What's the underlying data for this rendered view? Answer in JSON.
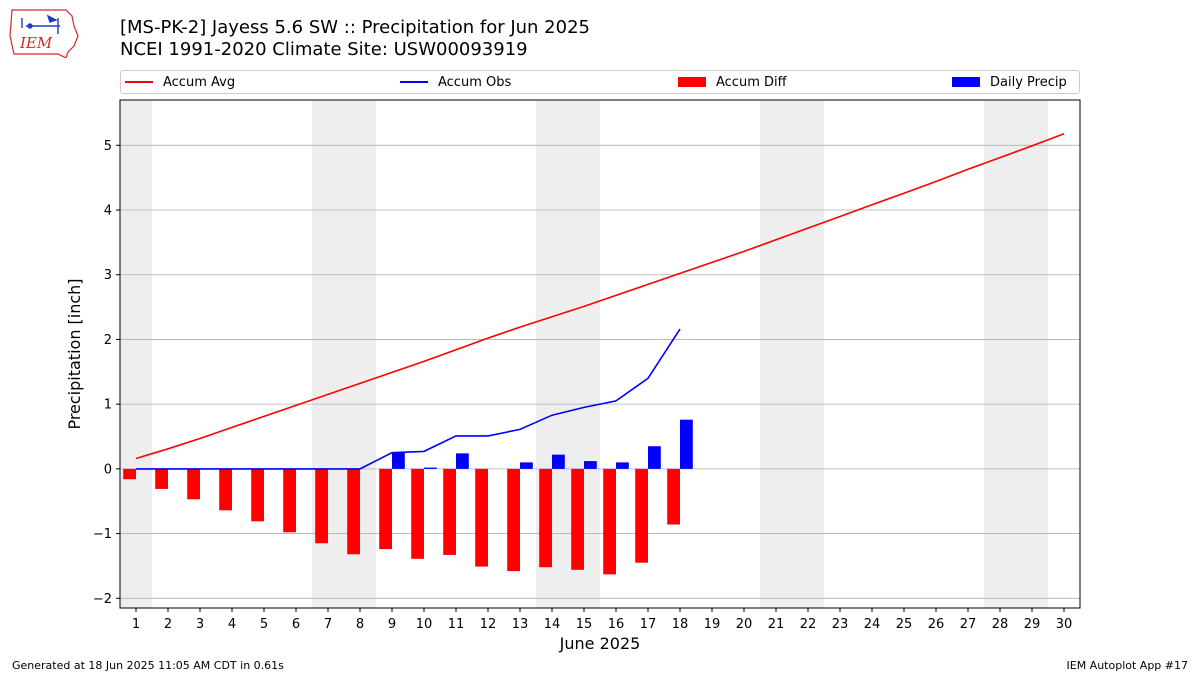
{
  "header": {
    "title_line1": "[MS-PK-2] Jayess 5.6 SW :: Precipitation for Jun 2025",
    "title_line2": "NCEI 1991-2020 Climate Site: USW00093919"
  },
  "logo": {
    "text": "IEM",
    "color": "#d62728"
  },
  "footer": {
    "generated": "Generated at 18 Jun 2025 11:05 AM CDT in 0.61s",
    "app": "IEM Autoplot App #17"
  },
  "legend": {
    "accum_avg": "Accum Avg",
    "accum_obs": "Accum Obs",
    "accum_diff": "Accum Diff",
    "daily_precip": "Daily Precip"
  },
  "colors": {
    "accum_avg": "#ff0000",
    "accum_obs": "#0000ff",
    "accum_diff": "#ff0000",
    "daily_precip": "#0000ff",
    "weekend_shade": "#eeeeee",
    "grid": "#b0b0b0"
  },
  "chart_data": {
    "type": "bar",
    "xlabel": "June 2025",
    "ylabel": "Precipitation [inch]",
    "xlim": [
      0.5,
      30.5
    ],
    "ylim": [
      -2.15,
      5.7
    ],
    "yticks": [
      -2,
      -1,
      0,
      1,
      2,
      3,
      4,
      5
    ],
    "ytick_labels": [
      "−2",
      "−1",
      "0",
      "1",
      "2",
      "3",
      "4",
      "5"
    ],
    "xticks": [
      1,
      2,
      3,
      4,
      5,
      6,
      7,
      8,
      9,
      10,
      11,
      12,
      13,
      14,
      15,
      16,
      17,
      18,
      19,
      20,
      21,
      22,
      23,
      24,
      25,
      26,
      27,
      28,
      29,
      30
    ],
    "grid": "horizontal",
    "legend_position": "top",
    "weekend_days": [
      1,
      7,
      8,
      14,
      15,
      21,
      22,
      28,
      29
    ],
    "series": [
      {
        "name": "Accum Avg",
        "kind": "line",
        "x": [
          1,
          2,
          3,
          4,
          5,
          6,
          7,
          8,
          9,
          10,
          11,
          12,
          13,
          14,
          15,
          16,
          17,
          18,
          19,
          20,
          21,
          22,
          23,
          24,
          25,
          26,
          27,
          28,
          29,
          30
        ],
        "values": [
          0.16,
          0.31,
          0.47,
          0.64,
          0.81,
          0.98,
          1.15,
          1.32,
          1.49,
          1.66,
          1.84,
          2.02,
          2.19,
          2.35,
          2.51,
          2.68,
          2.85,
          3.02,
          3.19,
          3.36,
          3.54,
          3.72,
          3.9,
          4.08,
          4.26,
          4.44,
          4.63,
          4.81,
          4.99,
          5.18
        ]
      },
      {
        "name": "Accum Obs",
        "kind": "line",
        "x": [
          1,
          2,
          3,
          4,
          5,
          6,
          7,
          8,
          9,
          10,
          11,
          12,
          13,
          14,
          15,
          16,
          17,
          18
        ],
        "values": [
          0,
          0,
          0,
          0,
          0,
          0,
          0,
          0,
          0.25,
          0.27,
          0.51,
          0.51,
          0.61,
          0.83,
          0.95,
          1.05,
          1.4,
          2.16
        ]
      },
      {
        "name": "Accum Diff",
        "kind": "bar",
        "x": [
          1,
          2,
          3,
          4,
          5,
          6,
          7,
          8,
          9,
          10,
          11,
          12,
          13,
          14,
          15,
          16,
          17,
          18
        ],
        "values": [
          -0.16,
          -0.31,
          -0.47,
          -0.64,
          -0.81,
          -0.98,
          -1.15,
          -1.32,
          -1.24,
          -1.39,
          -1.33,
          -1.51,
          -1.58,
          -1.52,
          -1.56,
          -1.63,
          -1.45,
          -0.86
        ]
      },
      {
        "name": "Daily Precip",
        "kind": "bar",
        "x": [
          1,
          2,
          3,
          4,
          5,
          6,
          7,
          8,
          9,
          10,
          11,
          12,
          13,
          14,
          15,
          16,
          17,
          18
        ],
        "values": [
          0,
          0,
          0,
          0,
          0,
          0,
          0,
          0,
          0.25,
          0.02,
          0.24,
          0,
          0.1,
          0.22,
          0.12,
          0.1,
          0.35,
          0.76
        ]
      }
    ]
  }
}
